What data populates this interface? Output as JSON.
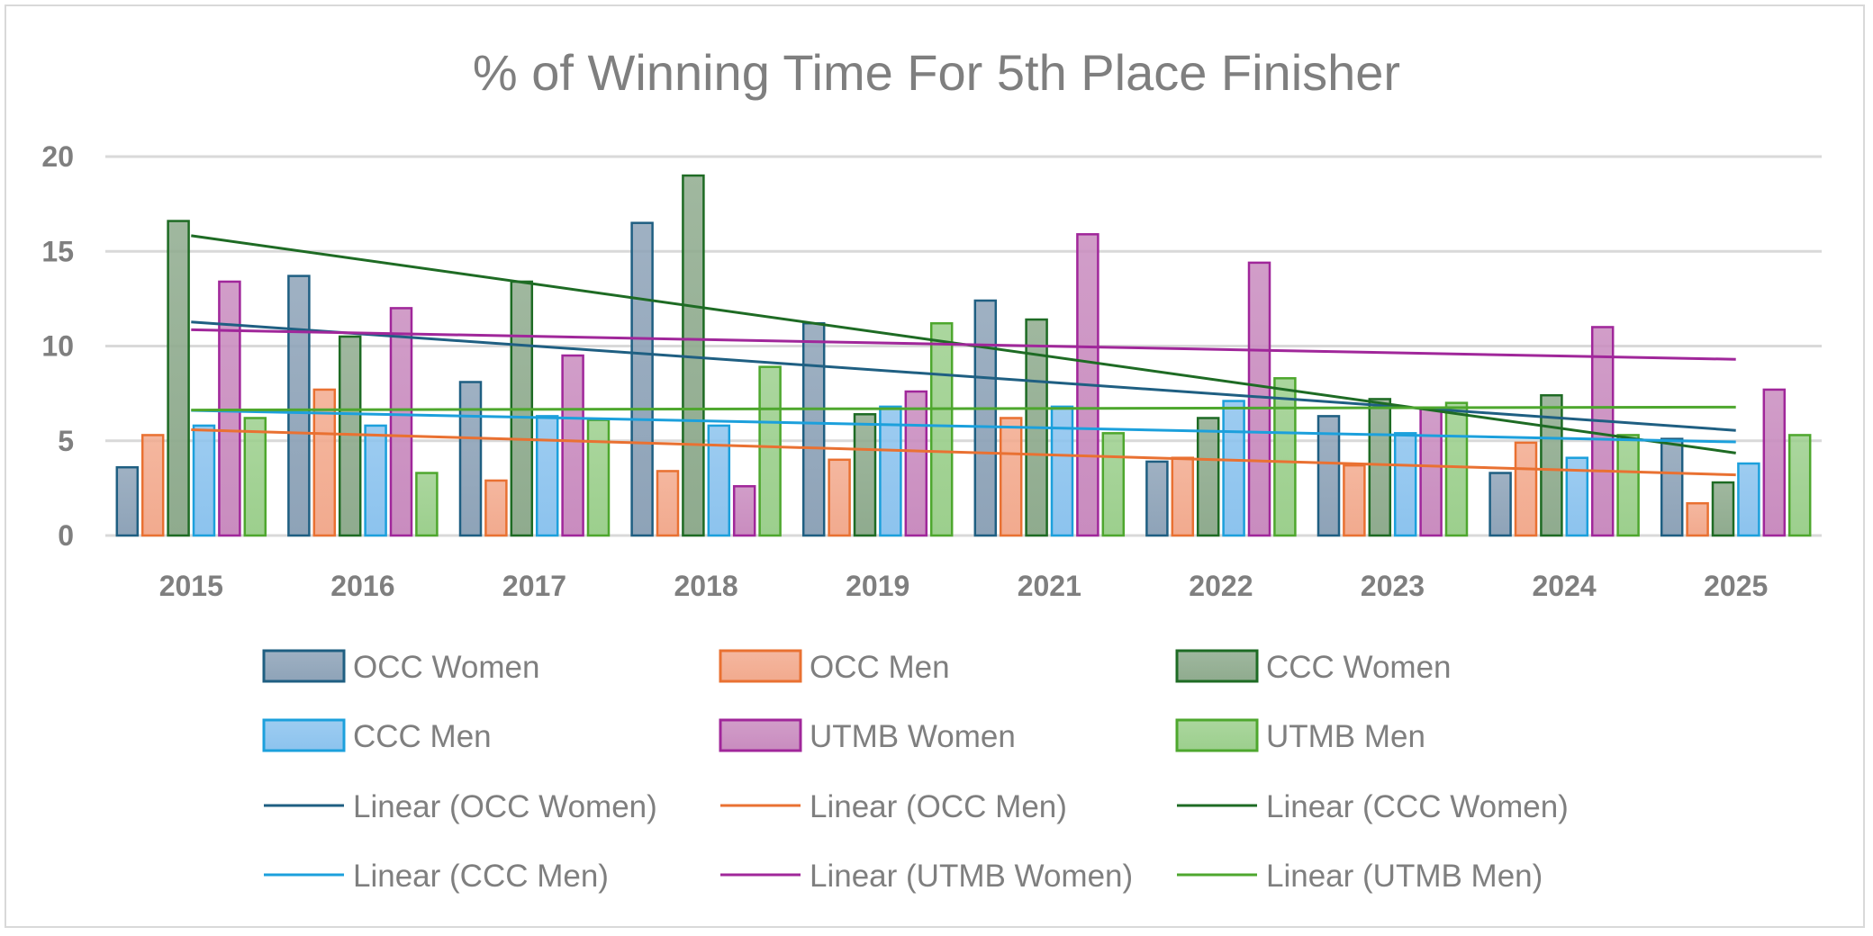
{
  "chart_data": {
    "type": "bar",
    "title": "% of Winning Time For 5th Place Finisher",
    "xlabel": "",
    "ylabel": "",
    "ylim": [
      0,
      20
    ],
    "yticks": [
      0,
      5,
      10,
      15,
      20
    ],
    "grid": true,
    "legend_position": "bottom",
    "categories": [
      "2015",
      "2016",
      "2017",
      "2018",
      "2019",
      "2021",
      "2022",
      "2023",
      "2024",
      "2025"
    ],
    "series": [
      {
        "name": "OCC Women",
        "fill": "#8ea3b8",
        "stroke": "#1f5f82",
        "values": [
          3.6,
          13.7,
          8.1,
          16.5,
          11.2,
          12.4,
          3.9,
          6.3,
          3.3,
          5.1
        ]
      },
      {
        "name": "OCC Men",
        "fill": "#f2aa8e",
        "stroke": "#e97132",
        "values": [
          5.3,
          7.7,
          2.9,
          3.4,
          4.0,
          6.2,
          4.1,
          3.7,
          4.9,
          1.7
        ]
      },
      {
        "name": "CCC Women",
        "fill": "#8fab8e",
        "stroke": "#1e6b24",
        "values": [
          16.6,
          10.5,
          13.4,
          19.0,
          6.4,
          11.4,
          6.2,
          7.2,
          7.4,
          2.8
        ]
      },
      {
        "name": "CCC Men",
        "fill": "#8cc3ee",
        "stroke": "#1ca0dc",
        "values": [
          5.8,
          5.8,
          6.3,
          5.8,
          6.8,
          6.8,
          7.1,
          5.4,
          4.1,
          3.8
        ]
      },
      {
        "name": "UTMB Women",
        "fill": "#c98cbf",
        "stroke": "#a0279a",
        "values": [
          13.4,
          12.0,
          9.5,
          2.6,
          7.6,
          15.9,
          14.4,
          6.7,
          11.0,
          7.7
        ]
      },
      {
        "name": "UTMB Men",
        "fill": "#9ccf8d",
        "stroke": "#4ea72e",
        "values": [
          6.2,
          3.3,
          6.1,
          8.9,
          11.2,
          5.4,
          8.3,
          7.0,
          5.3,
          5.3
        ]
      }
    ],
    "trendlines": [
      {
        "name": "Linear (OCC Women)",
        "of": "OCC Women",
        "type": "linear"
      },
      {
        "name": "Linear (OCC Men)",
        "of": "OCC Men",
        "type": "linear"
      },
      {
        "name": "Linear (CCC Women)",
        "of": "CCC Women",
        "type": "linear"
      },
      {
        "name": "Linear (CCC Men)",
        "of": "CCC Men",
        "type": "linear"
      },
      {
        "name": "Linear (UTMB Women)",
        "of": "UTMB Women",
        "type": "linear"
      },
      {
        "name": "Linear (UTMB Men)",
        "of": "UTMB Men",
        "type": "linear"
      }
    ]
  }
}
